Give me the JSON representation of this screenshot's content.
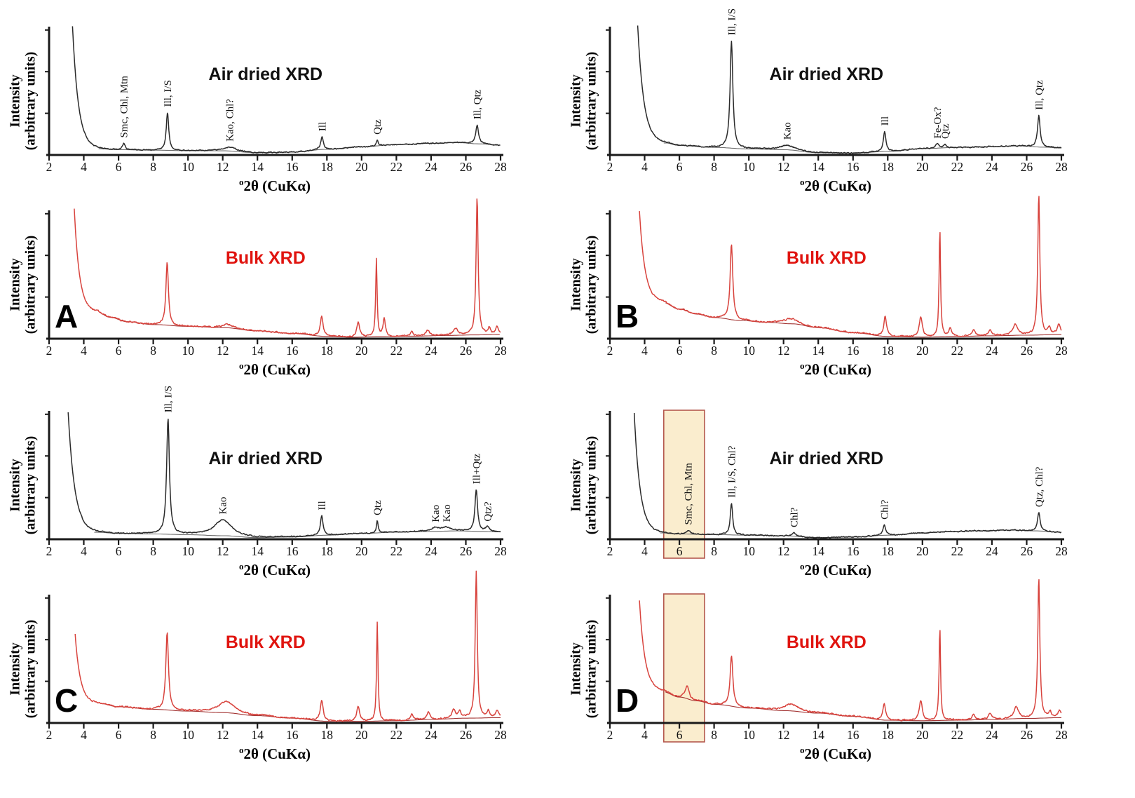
{
  "figure": {
    "description_visible_text_only": "",
    "panel_letters": [
      "A",
      "B",
      "C",
      "D"
    ]
  },
  "chart_data": [
    {
      "type": "line",
      "panel": "A",
      "variant": "air_dried",
      "title": "Air dried XRD",
      "title_color": "#111111",
      "trace_color": "#2a2a2a",
      "baseline_color": "#6e6e6e",
      "xlabel_sup": "o",
      "xlabel_main": "2θ (CuKα)",
      "ylabel_line1": "Intensity",
      "ylabel_line2": "(arbitrary units)",
      "xlim": [
        2,
        28
      ],
      "xticks": [
        2,
        4,
        6,
        8,
        10,
        12,
        14,
        16,
        18,
        20,
        22,
        24,
        26,
        28
      ],
      "start": {
        "x": 3.35,
        "v": 0.97,
        "tau": 0.34
      },
      "bg": [
        [
          4.7,
          0.05
        ],
        [
          6,
          0.042
        ],
        [
          8,
          0.038
        ],
        [
          10,
          0.034
        ],
        [
          12,
          0.033
        ],
        [
          14,
          0.018
        ],
        [
          16,
          0.022
        ],
        [
          18,
          0.045
        ],
        [
          20,
          0.065
        ],
        [
          22,
          0.082
        ],
        [
          24,
          0.092
        ],
        [
          25.5,
          0.098
        ],
        [
          26.8,
          0.088
        ],
        [
          28,
          0.078
        ]
      ],
      "peaks": [
        {
          "x": 6.3,
          "h": 0.05,
          "w": 0.1,
          "label": "Smc, Chl, Mtn"
        },
        {
          "x": 8.82,
          "h": 0.3,
          "w": 0.085,
          "label": "Ill, I/S"
        },
        {
          "x": 12.4,
          "h": 0.03,
          "w": 0.45,
          "label": "Kao, Chl?"
        },
        {
          "x": 17.72,
          "h": 0.1,
          "w": 0.09,
          "label": "Ill"
        },
        {
          "x": 20.9,
          "h": 0.045,
          "w": 0.06,
          "label": "Qtz"
        },
        {
          "x": 26.65,
          "h": 0.15,
          "w": 0.095,
          "label": "Ill, Qtz"
        }
      ],
      "highlight": null,
      "panel_letter": null
    },
    {
      "type": "line",
      "panel": "A",
      "variant": "bulk",
      "title": "Bulk XRD",
      "title_color": "#e0140f",
      "trace_color": "#d8433d",
      "baseline_color": "#a33433",
      "xlabel_sup": "o",
      "xlabel_main": "2θ (CuKα)",
      "ylabel_line1": "Intensity",
      "ylabel_line2": "(arbitrary units)",
      "xlim": [
        2,
        28
      ],
      "xticks": [
        2,
        4,
        6,
        8,
        10,
        12,
        14,
        16,
        18,
        20,
        22,
        24,
        26,
        28
      ],
      "start": {
        "x": 3.45,
        "v": 0.82,
        "tau": 0.3
      },
      "bg": [
        [
          4.8,
          0.21
        ],
        [
          5.5,
          0.17
        ],
        [
          6.5,
          0.135
        ],
        [
          8,
          0.112
        ],
        [
          10,
          0.098
        ],
        [
          12,
          0.088
        ],
        [
          14,
          0.062
        ],
        [
          16,
          0.042
        ],
        [
          18,
          0.018
        ],
        [
          19.5,
          0.012
        ],
        [
          21,
          0.016
        ],
        [
          23,
          0.02
        ],
        [
          25,
          0.026
        ],
        [
          26.5,
          0.03
        ],
        [
          28,
          0.034
        ]
      ],
      "peaks": [
        {
          "x": 8.8,
          "h": 0.5,
          "w": 0.085
        },
        {
          "x": 12.3,
          "h": 0.025,
          "w": 0.4
        },
        {
          "x": 17.7,
          "h": 0.16,
          "w": 0.095
        },
        {
          "x": 19.8,
          "h": 0.12,
          "w": 0.1
        },
        {
          "x": 20.85,
          "h": 0.61,
          "w": 0.05
        },
        {
          "x": 21.3,
          "h": 0.14,
          "w": 0.08
        },
        {
          "x": 22.9,
          "h": 0.035,
          "w": 0.09
        },
        {
          "x": 23.8,
          "h": 0.045,
          "w": 0.12
        },
        {
          "x": 25.4,
          "h": 0.055,
          "w": 0.15
        },
        {
          "x": 26.65,
          "h": 1.1,
          "w": 0.07
        },
        {
          "x": 27.35,
          "h": 0.05,
          "w": 0.08
        },
        {
          "x": 27.8,
          "h": 0.06,
          "w": 0.1
        }
      ],
      "highlight": null,
      "panel_letter": "A"
    },
    {
      "type": "line",
      "panel": "B",
      "variant": "air_dried",
      "title": "Air dried XRD",
      "title_color": "#111111",
      "trace_color": "#2a2a2a",
      "baseline_color": "#6e6e6e",
      "xlabel_sup": "o",
      "xlabel_main": "2θ (CuKα)",
      "ylabel_line1": "Intensity",
      "ylabel_line2": "(arbitrary units)",
      "xlim": [
        2,
        28
      ],
      "xticks": [
        2,
        4,
        6,
        8,
        10,
        12,
        14,
        16,
        18,
        20,
        22,
        24,
        26,
        28
      ],
      "start": {
        "x": 3.6,
        "v": 0.93,
        "tau": 0.35
      },
      "bg": [
        [
          5.2,
          0.095
        ],
        [
          6,
          0.075
        ],
        [
          8,
          0.06
        ],
        [
          10,
          0.048
        ],
        [
          12,
          0.042
        ],
        [
          14,
          0.018
        ],
        [
          16,
          0.014
        ],
        [
          18,
          0.028
        ],
        [
          20,
          0.05
        ],
        [
          22,
          0.06
        ],
        [
          24,
          0.066
        ],
        [
          25.5,
          0.072
        ],
        [
          27,
          0.062
        ],
        [
          28,
          0.055
        ]
      ],
      "peaks": [
        {
          "x": 9.0,
          "h": 0.85,
          "w": 0.095,
          "label": "Ill, I/S"
        },
        {
          "x": 12.2,
          "h": 0.035,
          "w": 0.5,
          "label": "Kao"
        },
        {
          "x": 17.82,
          "h": 0.16,
          "w": 0.09,
          "label": "Ill"
        },
        {
          "x": 20.85,
          "h": 0.032,
          "w": 0.12,
          "label": "Fe-Ox?"
        },
        {
          "x": 21.3,
          "h": 0.026,
          "w": 0.08,
          "label": "Qtz"
        },
        {
          "x": 26.7,
          "h": 0.25,
          "w": 0.09,
          "label": "Ill, Qtz"
        }
      ],
      "highlight": null,
      "panel_letter": null
    },
    {
      "type": "line",
      "panel": "B",
      "variant": "bulk",
      "title": "Bulk XRD",
      "title_color": "#e0140f",
      "trace_color": "#d8433d",
      "baseline_color": "#a33433",
      "xlabel_sup": "o",
      "xlabel_main": "2θ (CuKα)",
      "ylabel_line1": "Intensity",
      "ylabel_line2": "(arbitrary units)",
      "xlim": [
        2,
        28
      ],
      "xticks": [
        2,
        4,
        6,
        8,
        10,
        12,
        14,
        16,
        18,
        20,
        22,
        24,
        26,
        28
      ],
      "start": {
        "x": 3.7,
        "v": 0.72,
        "tau": 0.32
      },
      "bg": [
        [
          5,
          0.29
        ],
        [
          6,
          0.235
        ],
        [
          7,
          0.195
        ],
        [
          8,
          0.168
        ],
        [
          9.5,
          0.145
        ],
        [
          11,
          0.13
        ],
        [
          12.5,
          0.118
        ],
        [
          14,
          0.088
        ],
        [
          16,
          0.048
        ],
        [
          18,
          0.018
        ],
        [
          20,
          0.013
        ],
        [
          22,
          0.018
        ],
        [
          24,
          0.023
        ],
        [
          26,
          0.028
        ],
        [
          28,
          0.033
        ]
      ],
      "peaks": [
        {
          "x": 9.0,
          "h": 0.6,
          "w": 0.09
        },
        {
          "x": 12.4,
          "h": 0.04,
          "w": 0.45
        },
        {
          "x": 17.85,
          "h": 0.16,
          "w": 0.095
        },
        {
          "x": 19.9,
          "h": 0.16,
          "w": 0.105
        },
        {
          "x": 21.0,
          "h": 0.85,
          "w": 0.05
        },
        {
          "x": 21.6,
          "h": 0.07,
          "w": 0.09
        },
        {
          "x": 22.95,
          "h": 0.055,
          "w": 0.09
        },
        {
          "x": 23.9,
          "h": 0.045,
          "w": 0.11
        },
        {
          "x": 25.35,
          "h": 0.085,
          "w": 0.16
        },
        {
          "x": 26.7,
          "h": 1.12,
          "w": 0.07
        },
        {
          "x": 27.3,
          "h": 0.055,
          "w": 0.08
        },
        {
          "x": 27.85,
          "h": 0.075,
          "w": 0.11
        }
      ],
      "highlight": null,
      "panel_letter": "B"
    },
    {
      "type": "line",
      "panel": "C",
      "variant": "air_dried",
      "title": "Air dried XRD",
      "title_color": "#111111",
      "trace_color": "#2a2a2a",
      "baseline_color": "#6e6e6e",
      "xlabel_sup": "o",
      "xlabel_main": "2θ (CuKα)",
      "ylabel_line1": "Intensity",
      "ylabel_line2": "(arbitrary units)",
      "xlim": [
        2,
        28
      ],
      "xticks": [
        2,
        4,
        6,
        8,
        10,
        12,
        14,
        16,
        18,
        20,
        22,
        24,
        26,
        28
      ],
      "start": {
        "x": 3.1,
        "v": 0.95,
        "tau": 0.38
      },
      "bg": [
        [
          4.8,
          0.055
        ],
        [
          6,
          0.046
        ],
        [
          8,
          0.042
        ],
        [
          10,
          0.036
        ],
        [
          12,
          0.028
        ],
        [
          14,
          0.013
        ],
        [
          16,
          0.018
        ],
        [
          18,
          0.032
        ],
        [
          20,
          0.046
        ],
        [
          22,
          0.056
        ],
        [
          24,
          0.062
        ],
        [
          25.5,
          0.066
        ],
        [
          27,
          0.062
        ],
        [
          28,
          0.058
        ]
      ],
      "peaks": [
        {
          "x": 8.85,
          "h": 0.92,
          "w": 0.095,
          "label": "Ill, I/S"
        },
        {
          "x": 12.0,
          "h": 0.125,
          "w": 0.6,
          "label": "Kao"
        },
        {
          "x": 17.7,
          "h": 0.155,
          "w": 0.09,
          "label": "Ill"
        },
        {
          "x": 20.9,
          "h": 0.095,
          "w": 0.055,
          "label": "Qtz"
        },
        {
          "x": 24.25,
          "h": 0.028,
          "w": 0.3,
          "label": "Kao"
        },
        {
          "x": 24.9,
          "h": 0.028,
          "w": 0.3,
          "label": "Kao"
        },
        {
          "x": 26.6,
          "h": 0.33,
          "w": 0.09,
          "label": "Ill+Qtz"
        },
        {
          "x": 27.25,
          "h": 0.035,
          "w": 0.12,
          "label": "Qtz?"
        }
      ],
      "highlight": null,
      "panel_letter": null
    },
    {
      "type": "line",
      "panel": "C",
      "variant": "bulk",
      "title": "Bulk XRD",
      "title_color": "#e0140f",
      "trace_color": "#d8433d",
      "baseline_color": "#a33433",
      "xlabel_sup": "o",
      "xlabel_main": "2θ (CuKα)",
      "ylabel_line1": "Intensity",
      "ylabel_line2": "(arbitrary units)",
      "xlim": [
        2,
        28
      ],
      "xticks": [
        2,
        4,
        6,
        8,
        10,
        12,
        14,
        16,
        18,
        20,
        22,
        24,
        26,
        28
      ],
      "start": {
        "x": 3.5,
        "v": 0.55,
        "tau": 0.3
      },
      "bg": [
        [
          4.9,
          0.155
        ],
        [
          6,
          0.128
        ],
        [
          8,
          0.108
        ],
        [
          10,
          0.094
        ],
        [
          12,
          0.082
        ],
        [
          14,
          0.058
        ],
        [
          16,
          0.038
        ],
        [
          18,
          0.014
        ],
        [
          20,
          0.013
        ],
        [
          22,
          0.018
        ],
        [
          24,
          0.028
        ],
        [
          26,
          0.038
        ],
        [
          28,
          0.042
        ]
      ],
      "peaks": [
        {
          "x": 8.8,
          "h": 0.62,
          "w": 0.09
        },
        {
          "x": 12.2,
          "h": 0.09,
          "w": 0.55
        },
        {
          "x": 17.7,
          "h": 0.17,
          "w": 0.095
        },
        {
          "x": 19.8,
          "h": 0.12,
          "w": 0.1
        },
        {
          "x": 20.9,
          "h": 0.78,
          "w": 0.05
        },
        {
          "x": 22.9,
          "h": 0.045,
          "w": 0.09
        },
        {
          "x": 23.85,
          "h": 0.055,
          "w": 0.11
        },
        {
          "x": 25.3,
          "h": 0.065,
          "w": 0.13
        },
        {
          "x": 25.65,
          "h": 0.05,
          "w": 0.09
        },
        {
          "x": 26.6,
          "h": 1.16,
          "w": 0.07
        },
        {
          "x": 27.3,
          "h": 0.05,
          "w": 0.08
        },
        {
          "x": 27.8,
          "h": 0.055,
          "w": 0.1
        }
      ],
      "highlight": null,
      "panel_letter": "C"
    },
    {
      "type": "line",
      "panel": "D",
      "variant": "air_dried",
      "title": "Air dried XRD",
      "title_color": "#111111",
      "trace_color": "#2a2a2a",
      "baseline_color": "#6e6e6e",
      "xlabel_sup": "o",
      "xlabel_main": "2θ (CuKα)",
      "ylabel_line1": "Intensity",
      "ylabel_line2": "(arbitrary units)",
      "xlim": [
        2,
        28
      ],
      "xticks": [
        2,
        4,
        6,
        8,
        10,
        12,
        14,
        16,
        18,
        20,
        22,
        24,
        26,
        28
      ],
      "start": {
        "x": 3.4,
        "v": 0.95,
        "tau": 0.34
      },
      "bg": [
        [
          4.9,
          0.05
        ],
        [
          6,
          0.042
        ],
        [
          8,
          0.037
        ],
        [
          10,
          0.032
        ],
        [
          12,
          0.028
        ],
        [
          14,
          0.013
        ],
        [
          16,
          0.018
        ],
        [
          18,
          0.032
        ],
        [
          20,
          0.05
        ],
        [
          21.5,
          0.06
        ],
        [
          23,
          0.066
        ],
        [
          25,
          0.072
        ],
        [
          26.5,
          0.066
        ],
        [
          28,
          0.055
        ]
      ],
      "peaks": [
        {
          "x": 6.5,
          "h": 0.028,
          "w": 0.15,
          "label": "Smc, Chl, Mtn"
        },
        {
          "x": 9.0,
          "h": 0.25,
          "w": 0.085,
          "label": "Ill, I/S, Chl?"
        },
        {
          "x": 12.6,
          "h": 0.025,
          "w": 0.12,
          "label": "Chl?"
        },
        {
          "x": 17.8,
          "h": 0.08,
          "w": 0.095,
          "label": "Chl?"
        },
        {
          "x": 26.7,
          "h": 0.145,
          "w": 0.09,
          "label": "Qtz, Chl?"
        }
      ],
      "highlight": {
        "x0": 5.1,
        "x1": 7.45,
        "fill": "#faeccb",
        "border": "#b4584e"
      },
      "panel_letter": null
    },
    {
      "type": "line",
      "panel": "D",
      "variant": "bulk",
      "title": "Bulk XRD",
      "title_color": "#e0140f",
      "trace_color": "#d8433d",
      "baseline_color": "#a33433",
      "xlabel_sup": "o",
      "xlabel_main": "2θ (CuKα)",
      "ylabel_line1": "Intensity",
      "ylabel_line2": "(arbitrary units)",
      "xlim": [
        2,
        28
      ],
      "xticks": [
        2,
        4,
        6,
        8,
        10,
        12,
        14,
        16,
        18,
        20,
        22,
        24,
        26,
        28
      ],
      "start": {
        "x": 3.7,
        "v": 0.72,
        "tau": 0.32
      },
      "bg": [
        [
          5,
          0.25
        ],
        [
          6,
          0.205
        ],
        [
          7,
          0.175
        ],
        [
          8,
          0.148
        ],
        [
          10,
          0.118
        ],
        [
          12,
          0.098
        ],
        [
          14,
          0.078
        ],
        [
          16,
          0.052
        ],
        [
          18,
          0.022
        ],
        [
          20,
          0.018
        ],
        [
          22,
          0.022
        ],
        [
          24,
          0.028
        ],
        [
          26,
          0.036
        ],
        [
          28,
          0.042
        ]
      ],
      "peaks": [
        {
          "x": 6.45,
          "h": 0.1,
          "w": 0.13
        },
        {
          "x": 9.0,
          "h": 0.4,
          "w": 0.095
        },
        {
          "x": 12.45,
          "h": 0.055,
          "w": 0.5
        },
        {
          "x": 17.8,
          "h": 0.13,
          "w": 0.1
        },
        {
          "x": 19.9,
          "h": 0.16,
          "w": 0.105
        },
        {
          "x": 21.0,
          "h": 0.74,
          "w": 0.05
        },
        {
          "x": 22.95,
          "h": 0.045,
          "w": 0.09
        },
        {
          "x": 23.9,
          "h": 0.05,
          "w": 0.11
        },
        {
          "x": 25.4,
          "h": 0.09,
          "w": 0.16
        },
        {
          "x": 26.7,
          "h": 1.12,
          "w": 0.07
        },
        {
          "x": 27.35,
          "h": 0.045,
          "w": 0.08
        },
        {
          "x": 27.9,
          "h": 0.055,
          "w": 0.11
        }
      ],
      "highlight": {
        "x0": 5.1,
        "x1": 7.45,
        "fill": "#faeccb",
        "border": "#b4584e"
      },
      "panel_letter": "D"
    }
  ]
}
